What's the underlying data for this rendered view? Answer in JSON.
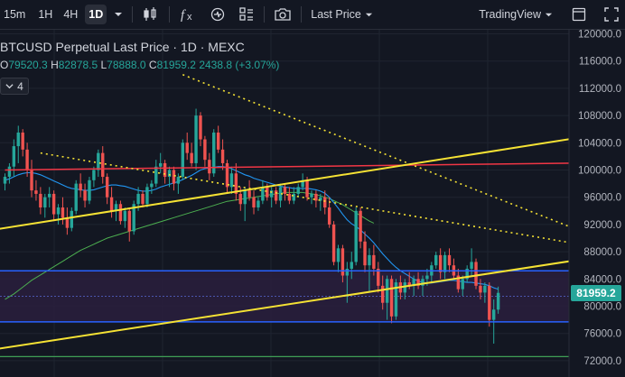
{
  "toolbar": {
    "intervals": [
      "15m",
      "1H",
      "4H",
      "1D"
    ],
    "active_interval": "1D",
    "price_type": "Last Price",
    "layout_name": "TradingView",
    "icons": [
      "chevron-down-icon",
      "candles-icon",
      "fx-icon",
      "alert-icon",
      "templates-icon",
      "camera-icon",
      "fullscreen-icon",
      "maximize-icon"
    ]
  },
  "legend": {
    "title": "BTCUSD Perpetual Last Price · 1D · MEXC",
    "open_label": "O",
    "open": "79520.3",
    "high_label": "H",
    "high": "82878.5",
    "low_label": "L",
    "low": "78888.0",
    "close_label": "C",
    "close": "81959.2",
    "change": "2438.8 (+3.07%)",
    "indicators_count": "4"
  },
  "price_axis": {
    "labels": [
      "120000.0",
      "116000.0",
      "112000.0",
      "108000.0",
      "104000.0",
      "100000.0",
      "96000.0",
      "92000.0",
      "88000.0",
      "84000.0",
      "80000.0",
      "76000.0",
      "72000.0"
    ],
    "last_price": "81959.2"
  },
  "colors": {
    "background": "#131722",
    "up": "#26a69a",
    "down": "#ef5350",
    "yellow": "#f5e234",
    "red_line": "#f23645",
    "blue_line": "#2962ff",
    "zone": "#2a1f3d",
    "green_line": "#4caf50"
  },
  "chart_data": {
    "type": "candlestick",
    "symbol": "BTCUSD Perpetual",
    "interval": "1D",
    "exchange": "MEXC",
    "ylim": [
      71000,
      121000
    ],
    "yticks": [
      120000,
      116000,
      112000,
      108000,
      104000,
      100000,
      96000,
      92000,
      88000,
      84000,
      80000,
      76000,
      72000
    ],
    "last_candle": {
      "open": 79520.3,
      "high": 82878.5,
      "low": 78888.0,
      "close": 81959.2,
      "change": 2438.8,
      "change_pct": 3.07
    },
    "grid": true,
    "candles": [
      [
        98000,
        99500,
        97000,
        99000
      ],
      [
        99000,
        101000,
        98000,
        100500
      ],
      [
        100500,
        104500,
        99000,
        103500
      ],
      [
        103500,
        106500,
        101000,
        105500
      ],
      [
        105500,
        106000,
        102000,
        103000
      ],
      [
        103000,
        104000,
        99000,
        100000
      ],
      [
        100000,
        101500,
        96000,
        97000
      ],
      [
        97000,
        98500,
        95500,
        96500
      ],
      [
        96500,
        97500,
        93500,
        94500
      ],
      [
        94500,
        96500,
        93000,
        96000
      ],
      [
        96000,
        97500,
        94500,
        96500
      ],
      [
        96500,
        97000,
        92500,
        93500
      ],
      [
        93500,
        95000,
        92000,
        94500
      ],
      [
        94500,
        96000,
        92000,
        93000
      ],
      [
        93000,
        94500,
        90500,
        91500
      ],
      [
        91500,
        94500,
        91000,
        94000
      ],
      [
        94000,
        98500,
        93500,
        98000
      ],
      [
        98000,
        99500,
        96000,
        97000
      ],
      [
        97000,
        98000,
        94500,
        95500
      ],
      [
        95500,
        99000,
        95000,
        98500
      ],
      [
        98500,
        100500,
        97500,
        100000
      ],
      [
        100000,
        103000,
        99000,
        102500
      ],
      [
        102500,
        103500,
        98000,
        99000
      ],
      [
        99000,
        99500,
        95000,
        96000
      ],
      [
        96000,
        97500,
        93000,
        94000
      ],
      [
        94000,
        95500,
        92500,
        95000
      ],
      [
        95000,
        95500,
        92000,
        92500
      ],
      [
        92500,
        94500,
        91500,
        94000
      ],
      [
        94000,
        94500,
        89500,
        91000
      ],
      [
        91000,
        95500,
        90500,
        95000
      ],
      [
        95000,
        97500,
        94000,
        96500
      ],
      [
        96500,
        97000,
        94500,
        95000
      ],
      [
        95000,
        98000,
        94500,
        97500
      ],
      [
        97500,
        98500,
        96500,
        98000
      ],
      [
        98000,
        101500,
        97500,
        100500
      ],
      [
        100500,
        102500,
        99500,
        101000
      ],
      [
        101000,
        101500,
        98000,
        99000
      ],
      [
        99000,
        100500,
        97500,
        100000
      ],
      [
        100000,
        100500,
        97000,
        98000
      ],
      [
        98000,
        99500,
        96500,
        99000
      ],
      [
        99000,
        104500,
        98500,
        104000
      ],
      [
        104000,
        105500,
        101500,
        102500
      ],
      [
        102500,
        104000,
        100500,
        101000
      ],
      [
        101000,
        109000,
        100000,
        108000
      ],
      [
        108000,
        108500,
        103500,
        104500
      ],
      [
        104500,
        105000,
        100500,
        101500
      ],
      [
        101500,
        102500,
        98500,
        99500
      ],
      [
        99500,
        106000,
        99000,
        105500
      ],
      [
        105500,
        106500,
        102500,
        103000
      ],
      [
        103000,
        104500,
        100000,
        101000
      ],
      [
        101000,
        101500,
        96500,
        97500
      ],
      [
        97500,
        100500,
        96500,
        99500
      ],
      [
        99500,
        101000,
        95500,
        96500
      ],
      [
        96500,
        97500,
        94000,
        95000
      ],
      [
        95000,
        97500,
        92500,
        97000
      ],
      [
        97000,
        98500,
        95500,
        96000
      ],
      [
        96000,
        97000,
        93500,
        94500
      ],
      [
        94500,
        96000,
        94000,
        95500
      ],
      [
        95500,
        98500,
        95000,
        97500
      ],
      [
        97500,
        98000,
        95500,
        96000
      ],
      [
        96000,
        97500,
        94500,
        97000
      ],
      [
        97000,
        97500,
        95000,
        95500
      ],
      [
        95500,
        98000,
        94500,
        97500
      ],
      [
        97500,
        98000,
        95500,
        96500
      ],
      [
        96500,
        97500,
        95000,
        95500
      ],
      [
        95500,
        97500,
        95000,
        96500
      ],
      [
        96500,
        98000,
        96000,
        97500
      ],
      [
        97500,
        99500,
        97000,
        98500
      ],
      [
        98500,
        99000,
        95500,
        96000
      ],
      [
        96000,
        97000,
        95000,
        96500
      ],
      [
        96500,
        97000,
        94500,
        95500
      ],
      [
        95500,
        96500,
        94000,
        96000
      ],
      [
        96000,
        97000,
        93500,
        94500
      ],
      [
        94500,
        96000,
        91500,
        92000
      ],
      [
        92000,
        92500,
        86000,
        86500
      ],
      [
        86500,
        89000,
        85000,
        88500
      ],
      [
        88500,
        89000,
        83500,
        84500
      ],
      [
        84500,
        86500,
        80500,
        85500
      ],
      [
        85500,
        88000,
        84000,
        86500
      ],
      [
        86500,
        94500,
        86000,
        94000
      ],
      [
        94000,
        94500,
        88500,
        89500
      ],
      [
        89500,
        91000,
        85000,
        86000
      ],
      [
        86000,
        88500,
        82000,
        87500
      ],
      [
        87500,
        89000,
        84500,
        85500
      ],
      [
        85500,
        86500,
        82000,
        83000
      ],
      [
        83000,
        84500,
        79500,
        80500
      ],
      [
        80500,
        84500,
        78000,
        84000
      ],
      [
        84000,
        84500,
        77500,
        78500
      ],
      [
        78500,
        84000,
        78000,
        83500
      ],
      [
        83500,
        84500,
        81000,
        82000
      ],
      [
        82000,
        84000,
        81000,
        83500
      ],
      [
        83500,
        85000,
        82500,
        83000
      ],
      [
        83000,
        84500,
        81500,
        84000
      ],
      [
        84000,
        85000,
        82500,
        83000
      ],
      [
        83000,
        84500,
        81500,
        84000
      ],
      [
        84000,
        85500,
        83000,
        84500
      ],
      [
        84500,
        86500,
        83500,
        86000
      ],
      [
        86000,
        88000,
        85500,
        87500
      ],
      [
        87500,
        88500,
        84000,
        85000
      ],
      [
        85000,
        88000,
        84000,
        87500
      ],
      [
        87500,
        88500,
        85000,
        86000
      ],
      [
        86000,
        87000,
        84000,
        84500
      ],
      [
        84500,
        85500,
        82000,
        82500
      ],
      [
        82500,
        84500,
        81500,
        84000
      ],
      [
        84000,
        86000,
        83500,
        85500
      ],
      [
        85500,
        88500,
        84500,
        86500
      ],
      [
        86500,
        87000,
        82500,
        83000
      ],
      [
        83000,
        84000,
        81000,
        82000
      ],
      [
        82000,
        83500,
        80500,
        83000
      ],
      [
        83000,
        83500,
        77000,
        78000
      ],
      [
        78000,
        81000,
        74500,
        79500
      ],
      [
        79500,
        82878.5,
        78888,
        81959.2
      ]
    ],
    "ma_blue": [
      98500,
      98700,
      99000,
      99300,
      99500,
      99600,
      99600,
      99500,
      99300,
      99000,
      98700,
      98400,
      98100,
      97800,
      97500,
      97300,
      97200,
      97100,
      97000,
      97000,
      97100,
      97300,
      97500,
      97700,
      97800,
      97800,
      97700,
      97600,
      97400,
      97200,
      97000,
      96900,
      96900,
      97000,
      97200,
      97500,
      97700,
      97900,
      98100,
      98300,
      98600,
      98900,
      99200,
      99600,
      100000,
      100200,
      100300,
      100400,
      100500,
      100500,
      100400,
      100200,
      99900,
      99600,
      99300,
      99100,
      98800,
      98600,
      98400,
      98200,
      98000,
      97800,
      97600,
      97500,
      97400,
      97300,
      97300,
      97300,
      97300,
      97200,
      97100,
      96900,
      96600,
      96000,
      95200,
      94400,
      93500,
      92700,
      92100,
      91700,
      91200,
      90600,
      90000,
      89300,
      88500,
      87700,
      87000,
      86300,
      85700,
      85200,
      84800,
      84400,
      84000,
      83700,
      83500,
      83400,
      83400,
      83500,
      83600,
      83700,
      83800,
      83800,
      83700,
      83600,
      83500,
      83500,
      83400,
      83300,
      83200,
      83000,
      82700,
      82500
    ],
    "ma_green": [
      81000,
      81400,
      81800,
      82300,
      82800,
      83300,
      83800,
      84200,
      84600,
      85000,
      85400,
      85800,
      86200,
      86600,
      87000,
      87400,
      87800,
      88200,
      88500,
      88800,
      89100,
      89400,
      89700,
      90000,
      90200,
      90400,
      90600,
      90800,
      91000,
      91200,
      91400,
      91600,
      91800,
      92000,
      92200,
      92400,
      92600,
      92800,
      93000,
      93200,
      93400,
      93600,
      93800,
      94000,
      94200,
      94400,
      94600,
      94800,
      95000,
      95200,
      95400,
      95500,
      95600,
      95700,
      95800,
      95900,
      96000,
      96100,
      96200,
      96300,
      96400,
      96500,
      96600,
      96700,
      96700,
      96700,
      96700,
      96700,
      96600,
      96500,
      96400,
      96200,
      96000,
      95800,
      95500,
      95200,
      94900,
      94500,
      94100,
      93700,
      93300,
      92900,
      92500,
      92200
    ],
    "trendlines": {
      "yellow_solid_upper": [
        [
          -34,
          88000
        ],
        [
          190,
          111000
        ]
      ],
      "yellow_solid_lower": [
        [
          -34,
          70500
        ],
        [
          190,
          92900
        ]
      ],
      "yellow_dotted_upper": [
        [
          40,
          114000
        ],
        [
          189,
          75800
        ]
      ],
      "yellow_dotted_lower": [
        [
          8,
          102500
        ],
        [
          180,
          83500
        ]
      ]
    },
    "horizontal_lines": {
      "red": [
        [
          0,
          100000
        ],
        [
          190,
          101500
        ]
      ],
      "blue_upper": 85200,
      "blue_lower": 77700,
      "green": 72600
    }
  }
}
